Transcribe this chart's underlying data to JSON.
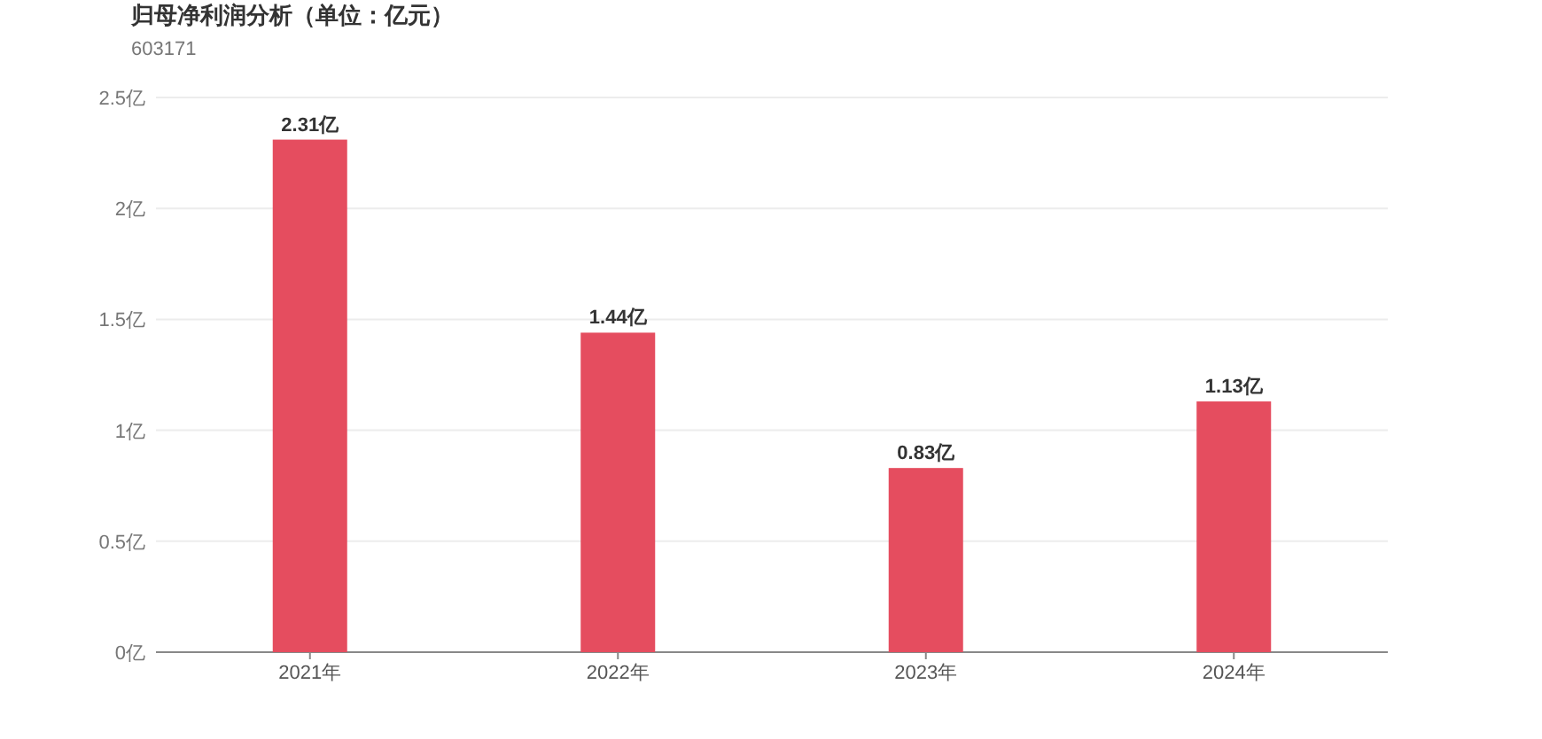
{
  "chart_data": {
    "type": "bar",
    "title": "归母净利润分析（单位：亿元）",
    "subtitle": "603171",
    "categories": [
      "2021年",
      "2022年",
      "2023年",
      "2024年"
    ],
    "values": [
      2.31,
      1.44,
      0.83,
      1.13
    ],
    "value_labels": [
      "2.31亿",
      "1.44亿",
      "0.83亿",
      "1.13亿"
    ],
    "color": "#e54d5f",
    "ylim": [
      0,
      2.5
    ],
    "yticks": [
      {
        "value": 0,
        "label": "0亿"
      },
      {
        "value": 0.5,
        "label": "0.5亿"
      },
      {
        "value": 1,
        "label": "1亿"
      },
      {
        "value": 1.5,
        "label": "1.5亿"
      },
      {
        "value": 2,
        "label": "2亿"
      },
      {
        "value": 2.5,
        "label": "2.5亿"
      }
    ],
    "grid": "y"
  }
}
